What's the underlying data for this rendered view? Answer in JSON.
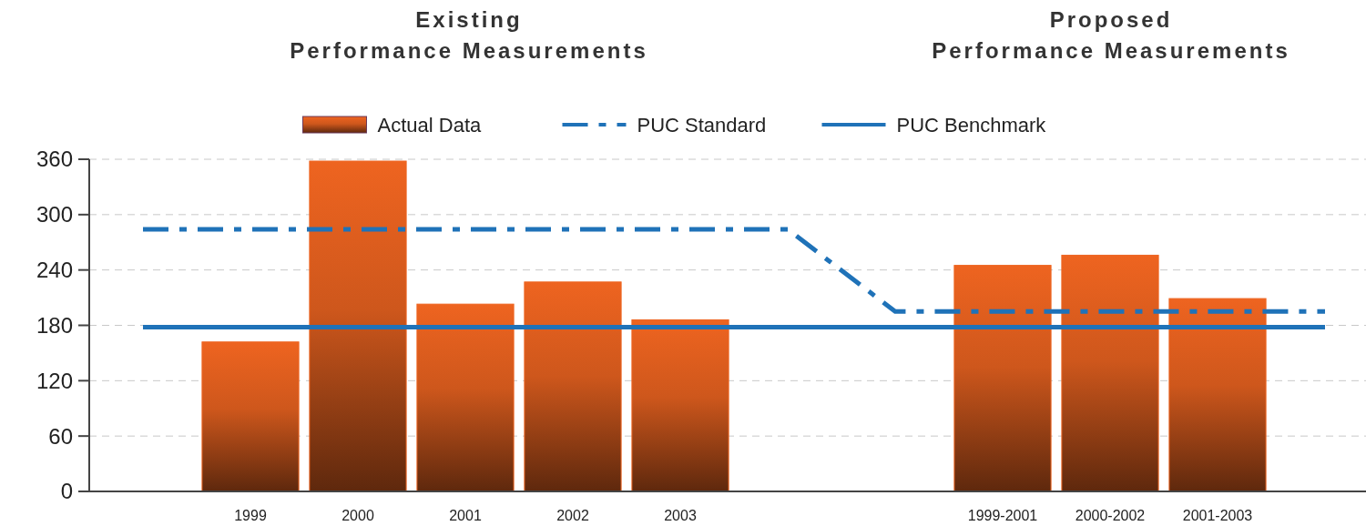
{
  "chart_data": {
    "type": "bar",
    "annotations": [
      "Existing\nPerformance Measurements",
      "Proposed\nPerformance Measurements"
    ],
    "categories": [
      null,
      "1999",
      "2000",
      "2001",
      "2002",
      "2003",
      null,
      null,
      "1999-2001",
      "2000-2002",
      "2001-2003",
      null
    ],
    "series": [
      {
        "name": "Actual Data",
        "color": "#ee6420",
        "values": [
          null,
          162,
          358,
          203,
          227,
          186,
          null,
          null,
          245,
          256,
          209,
          null
        ]
      },
      {
        "name": "PUC Standard",
        "type": "line",
        "line_style": "dashed",
        "color": "#1f72b8",
        "values": [
          284,
          284,
          284,
          284,
          284,
          284,
          284,
          195,
          195,
          195,
          195,
          195
        ]
      },
      {
        "name": "PUC Benchmark",
        "type": "line",
        "line_style": "solid",
        "color": "#1f72b8",
        "values": [
          178,
          178,
          178,
          178,
          178,
          178,
          178,
          178,
          178,
          178,
          178,
          178
        ]
      }
    ],
    "ylim": [
      0,
      360
    ],
    "yticks": [
      0,
      60,
      120,
      180,
      240,
      300,
      360
    ],
    "grid": "y",
    "legend": "top"
  }
}
